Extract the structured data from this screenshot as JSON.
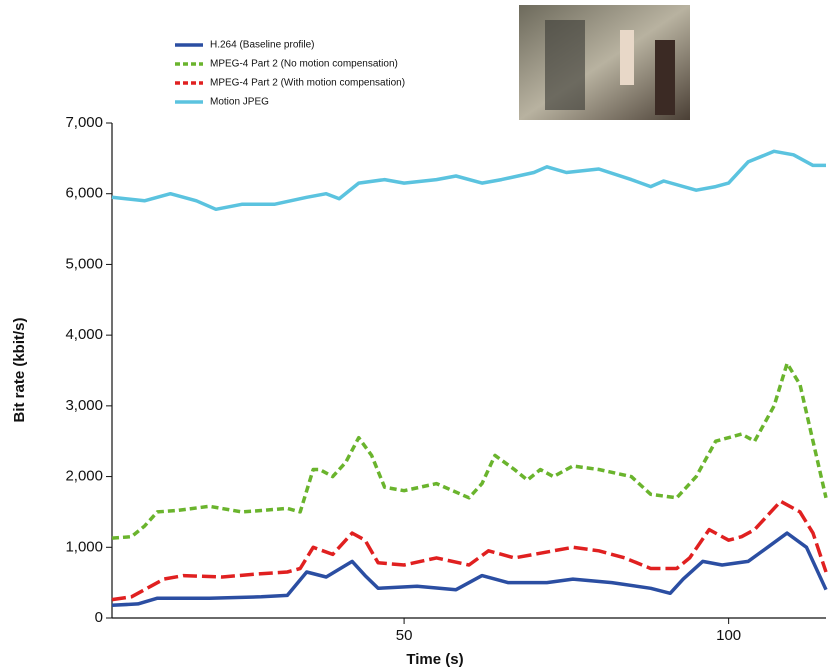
{
  "chart_data": {
    "type": "line",
    "x_label": "Time (s)",
    "y_label": "Bit rate (kbit/s)",
    "xlim": [
      5,
      115
    ],
    "xticks": [
      50,
      100
    ],
    "ylim": [
      0,
      7000
    ],
    "yticks": [
      0,
      {
        "value": 1000,
        "label": "1,000"
      },
      {
        "value": 2000,
        "label": "2,000"
      },
      {
        "value": 3000,
        "label": "3,000"
      },
      {
        "value": 4000,
        "label": "4,000"
      },
      {
        "value": 5000,
        "label": "5,000"
      },
      {
        "value": 6000,
        "label": "6,000"
      },
      {
        "value": 7000,
        "label": "7,000"
      }
    ],
    "series": [
      {
        "name": "H.264 (Baseline profile)",
        "color": "#2b4ea2",
        "dash": "none",
        "x": [
          5,
          9,
          12,
          20,
          28,
          32,
          35,
          38,
          42,
          44,
          46,
          52,
          58,
          62,
          66,
          72,
          76,
          82,
          88,
          91,
          93,
          96,
          99,
          103,
          106,
          109,
          112,
          115
        ],
        "values": [
          180,
          200,
          280,
          280,
          300,
          320,
          650,
          580,
          800,
          600,
          420,
          450,
          400,
          600,
          500,
          500,
          550,
          500,
          420,
          350,
          550,
          800,
          750,
          800,
          1000,
          1200,
          1000,
          400
        ]
      },
      {
        "name": "MPEG-4 Part 2 (No motion compensation)",
        "color": "#6ab42d",
        "dash": "7,4",
        "x": [
          5,
          8,
          10,
          12,
          15,
          20,
          25,
          28,
          32,
          34,
          36,
          37,
          39,
          41,
          43,
          45,
          47,
          50,
          55,
          60,
          62,
          64,
          67,
          69,
          71,
          73,
          76,
          80,
          85,
          88,
          92,
          95,
          98,
          102,
          104,
          107,
          109,
          111,
          113,
          115
        ],
        "values": [
          1130,
          1150,
          1300,
          1500,
          1520,
          1580,
          1500,
          1520,
          1550,
          1500,
          2100,
          2100,
          2000,
          2200,
          2550,
          2300,
          1850,
          1800,
          1900,
          1700,
          1900,
          2300,
          2100,
          1950,
          2100,
          2000,
          2150,
          2100,
          2000,
          1750,
          1700,
          2000,
          2500,
          2600,
          2500,
          3000,
          3600,
          3300,
          2500,
          1700
        ]
      },
      {
        "name": "MPEG-4 Part 2 (With motion compensation)",
        "color": "#e02020",
        "dash": "14,5",
        "x": [
          5,
          8,
          11,
          13,
          16,
          22,
          27,
          32,
          34,
          36,
          39,
          42,
          44,
          46,
          50,
          55,
          60,
          63,
          67,
          70,
          73,
          76,
          80,
          84,
          88,
          92,
          94,
          97,
          100,
          102,
          104,
          108,
          111,
          113,
          115
        ],
        "values": [
          260,
          300,
          450,
          550,
          600,
          580,
          620,
          650,
          700,
          1000,
          900,
          1200,
          1100,
          780,
          750,
          850,
          750,
          950,
          850,
          900,
          950,
          1000,
          950,
          850,
          700,
          700,
          850,
          1250,
          1100,
          1150,
          1250,
          1650,
          1500,
          1200,
          650
        ]
      },
      {
        "name": "Motion JPEG",
        "color": "#5bc3df",
        "dash": "none",
        "x": [
          5,
          10,
          14,
          18,
          21,
          25,
          30,
          35,
          38,
          40,
          43,
          47,
          50,
          55,
          58,
          62,
          65,
          70,
          72,
          75,
          80,
          85,
          88,
          90,
          95,
          98,
          100,
          103,
          107,
          110,
          113,
          115
        ],
        "values": [
          5950,
          5900,
          6000,
          5900,
          5780,
          5850,
          5850,
          5950,
          6000,
          5930,
          6150,
          6200,
          6150,
          6200,
          6250,
          6150,
          6200,
          6300,
          6380,
          6300,
          6350,
          6200,
          6100,
          6180,
          6050,
          6100,
          6150,
          6450,
          6600,
          6550,
          6400,
          6400
        ]
      }
    ]
  }
}
